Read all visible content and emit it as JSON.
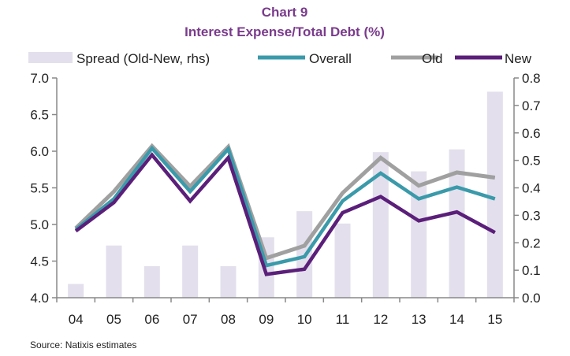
{
  "chart_data": {
    "type": "bar+line",
    "title": "Chart 9",
    "subtitle": "Interest Expense/Total Debt (%)",
    "source": "Source: Natixis estimates",
    "categories": [
      "04",
      "05",
      "06",
      "07",
      "08",
      "09",
      "10",
      "11",
      "12",
      "13",
      "14",
      "15"
    ],
    "y_left": {
      "min": 4.0,
      "max": 7.0,
      "ticks": [
        "4.0",
        "4.5",
        "5.0",
        "5.5",
        "6.0",
        "6.5",
        "7.0"
      ]
    },
    "y_right": {
      "min": 0.0,
      "max": 0.8,
      "ticks": [
        "0.0",
        "0.1",
        "0.2",
        "0.3",
        "0.4",
        "0.5",
        "0.6",
        "0.7",
        "0.8"
      ]
    },
    "legend_position": "top",
    "grid": false,
    "series": [
      {
        "name": "Spread (Old-New, rhs)",
        "type": "bar",
        "axis": "right",
        "color": "#e3dfec",
        "values": [
          0.05,
          0.19,
          0.115,
          0.19,
          0.115,
          0.22,
          0.315,
          0.27,
          0.53,
          0.46,
          0.54,
          0.75
        ]
      },
      {
        "name": "Overall",
        "type": "line",
        "axis": "left",
        "color": "#3a9aaa",
        "values": [
          4.93,
          5.35,
          6.04,
          5.45,
          6.03,
          4.44,
          4.56,
          5.32,
          5.7,
          5.35,
          5.51,
          5.35
        ]
      },
      {
        "name": "Old",
        "type": "line",
        "axis": "left",
        "color": "#a0a0a0",
        "values": [
          4.95,
          5.45,
          6.07,
          5.52,
          6.06,
          4.54,
          4.71,
          5.43,
          5.91,
          5.53,
          5.71,
          5.64
        ]
      },
      {
        "name": "New",
        "type": "line",
        "axis": "left",
        "color": "#5b1f7a",
        "values": [
          4.91,
          5.3,
          5.95,
          5.32,
          5.91,
          4.32,
          4.39,
          5.16,
          5.38,
          5.05,
          5.17,
          4.89
        ]
      }
    ]
  }
}
